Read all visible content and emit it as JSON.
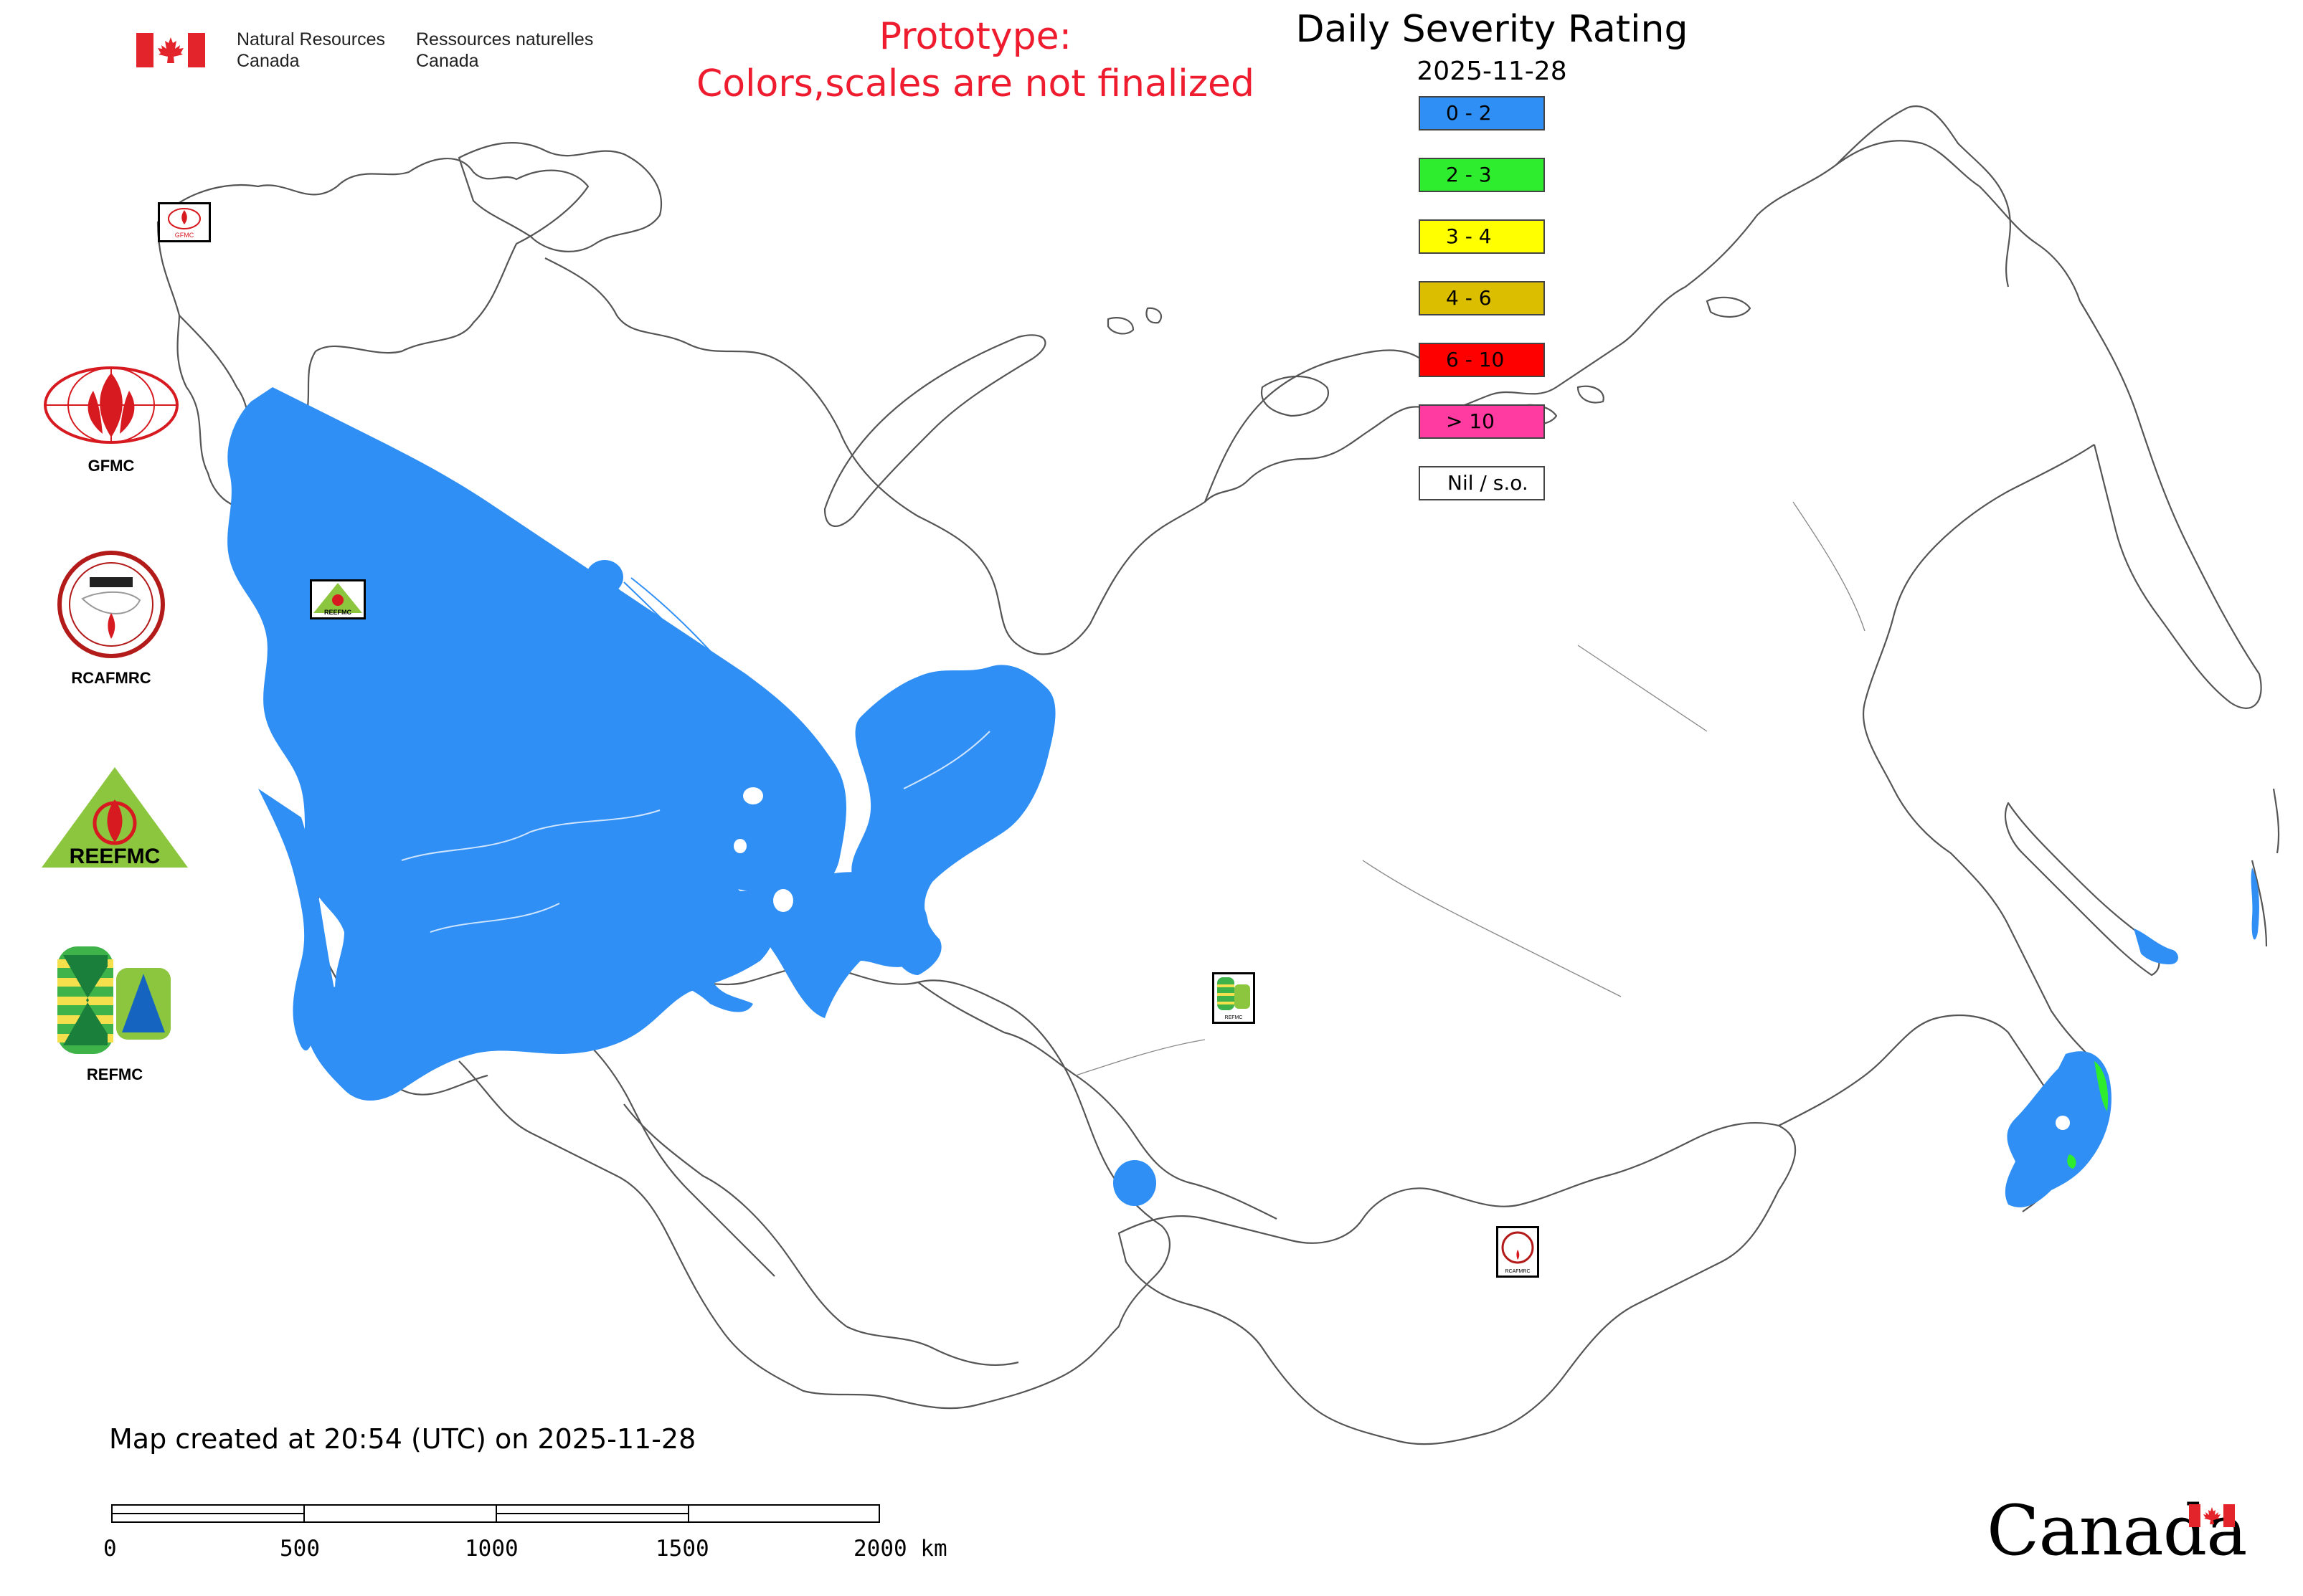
{
  "header": {
    "department_en_line1": "Natural Resources",
    "department_en_line2": "Canada",
    "department_fr_line1": "Ressources naturelles",
    "department_fr_line2": "Canada"
  },
  "notice": {
    "line1": "Prototype:",
    "line2": "Colors,scales are not finalized"
  },
  "map": {
    "title": "Daily Severity Rating",
    "date": "2025-11-28"
  },
  "legend": {
    "items": [
      {
        "label": "0 - 2",
        "color": "#2f8ff4"
      },
      {
        "label": "2 - 3",
        "color": "#2eed2e"
      },
      {
        "label": "3 - 4",
        "color": "#ffff00"
      },
      {
        "label": "4 - 6",
        "color": "#dcbe00"
      },
      {
        "label": "6 - 10",
        "color": "#ff0000"
      },
      {
        "label": "> 10",
        "color": "#ff3aa0"
      },
      {
        "label": "Nil / s.o.",
        "color": "#ffffff"
      }
    ]
  },
  "logos": {
    "gfmc": "GFMC",
    "rcafmrc": "RCAFMRC",
    "reefmc": "REEFMC",
    "refmc": "REFMC",
    "gfmc_small": "GFMC",
    "rcafmrc_small": "RCAFMRC",
    "reefmc_small": "REEFMC",
    "refmc_small": "REFMC"
  },
  "footer": {
    "created_note": "Map created at 20:54 (UTC) on 2025-11-28",
    "scale_labels": [
      "0",
      "500",
      "1000",
      "1500",
      "2000 km"
    ],
    "wordmark": "Canada"
  },
  "colors": {
    "notice": "#ee1c2e",
    "dsr_low": "#2f8ff4",
    "dsr_green": "#2eed2e",
    "flag_red": "#e3242b"
  },
  "icons": [
    "canada-flag-icon",
    "maple-leaf-icon",
    "gfmc-logo-icon",
    "rcafmrc-logo-icon",
    "reefmc-logo-icon",
    "refmc-logo-icon"
  ]
}
